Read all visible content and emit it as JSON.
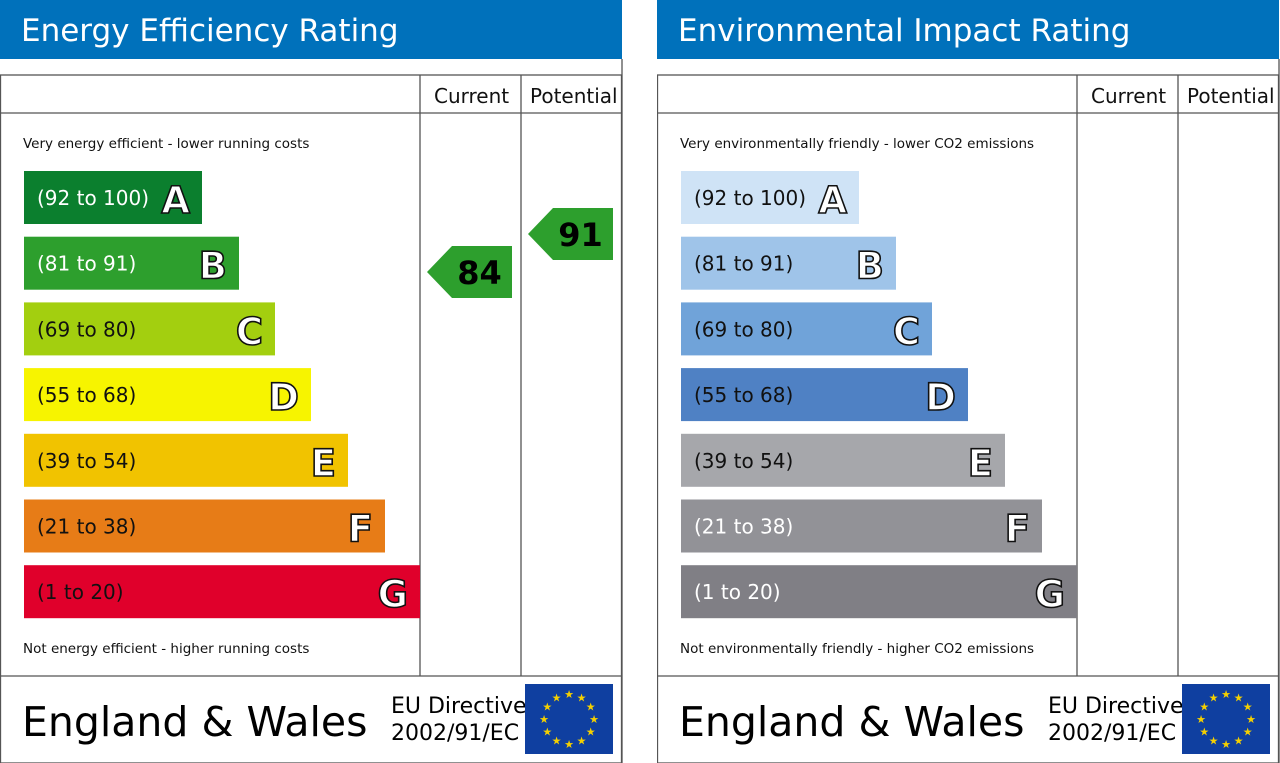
{
  "chart_data": [
    {
      "type": "bar",
      "title": "Energy Efficiency Rating",
      "columns": [
        "Current",
        "Potential"
      ],
      "top_note": "Very energy efficient - lower running costs",
      "bottom_note": "Not energy efficient - higher running costs",
      "bands": [
        {
          "letter": "A",
          "range": "(92 to 100)",
          "color": "#0b7f2e",
          "text_color": "#ffffff"
        },
        {
          "letter": "B",
          "range": "(81 to 91)",
          "color": "#2d9f2d",
          "text_color": "#ffffff"
        },
        {
          "letter": "C",
          "range": "(69 to 80)",
          "color": "#a3cf0f",
          "text_color": "#111111"
        },
        {
          "letter": "D",
          "range": "(55 to 68)",
          "color": "#f7f400",
          "text_color": "#111111"
        },
        {
          "letter": "E",
          "range": "(39 to 54)",
          "color": "#f1c300",
          "text_color": "#111111"
        },
        {
          "letter": "F",
          "range": "(21 to 38)",
          "color": "#e77c17",
          "text_color": "#111111"
        },
        {
          "letter": "G",
          "range": "(1 to 20)",
          "color": "#e0002b",
          "text_color": "#111111"
        }
      ],
      "current": {
        "value": 84,
        "color": "#2d9f2d"
      },
      "potential": {
        "value": 91,
        "color": "#2d9f2d"
      },
      "footer": {
        "region": "England & Wales",
        "directive_line1": "EU Directive",
        "directive_line2": "2002/91/EC"
      }
    },
    {
      "type": "bar",
      "title": "Environmental Impact Rating",
      "columns": [
        "Current",
        "Potential"
      ],
      "top_note": "Very environmentally friendly - lower CO2 emissions",
      "bottom_note": "Not environmentally friendly - higher CO2 emissions",
      "bands": [
        {
          "letter": "A",
          "range": "(92 to 100)",
          "color": "#cfe3f6",
          "text_color": "#111111"
        },
        {
          "letter": "B",
          "range": "(81 to 91)",
          "color": "#9fc4e9",
          "text_color": "#111111"
        },
        {
          "letter": "C",
          "range": "(69 to 80)",
          "color": "#70a3d9",
          "text_color": "#111111"
        },
        {
          "letter": "D",
          "range": "(55 to 68)",
          "color": "#4f81c4",
          "text_color": "#111111"
        },
        {
          "letter": "E",
          "range": "(39 to 54)",
          "color": "#a6a7ab",
          "text_color": "#111111"
        },
        {
          "letter": "F",
          "range": "(21 to 38)",
          "color": "#929297",
          "text_color": "#ffffff"
        },
        {
          "letter": "G",
          "range": "(1 to 20)",
          "color": "#807f85",
          "text_color": "#ffffff"
        }
      ],
      "current": null,
      "potential": null,
      "footer": {
        "region": "England & Wales",
        "directive_line1": "EU Directive",
        "directive_line2": "2002/91/EC"
      }
    }
  ],
  "colors": {
    "header": "#0071bb",
    "eu_flag": "#0f3fa0",
    "eu_star": "#f5d000"
  }
}
